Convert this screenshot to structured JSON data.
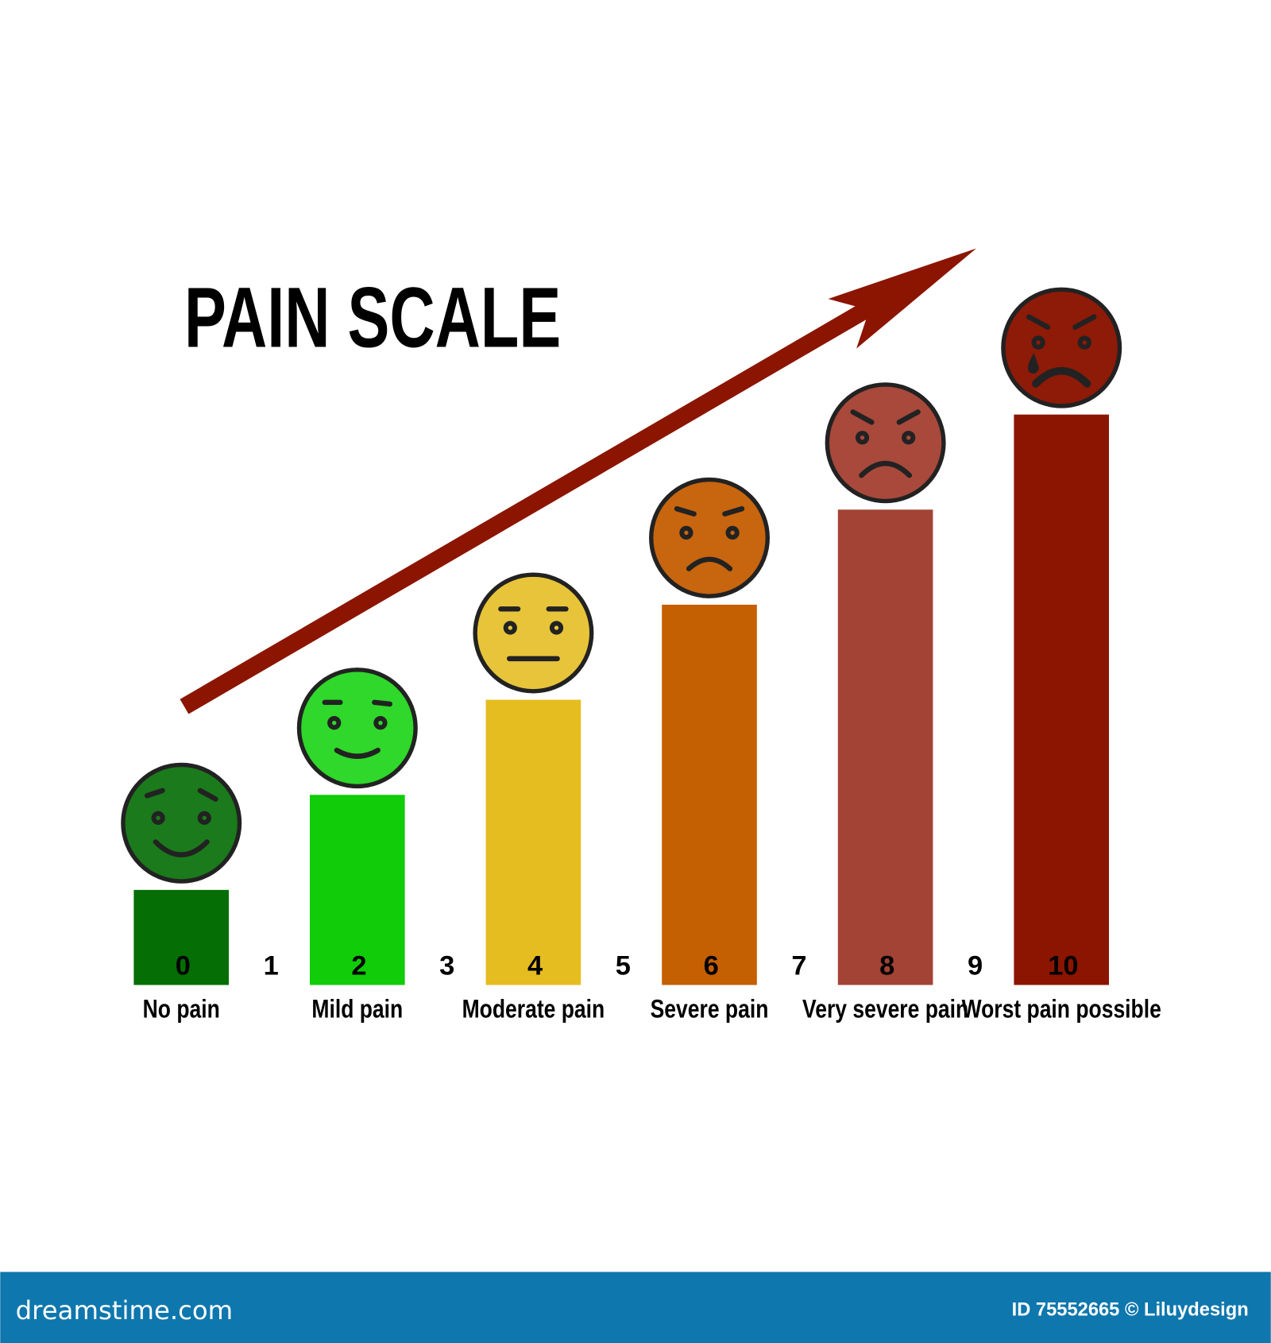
{
  "chart_data": {
    "type": "bar",
    "title": "PAIN SCALE",
    "categories": [
      "0",
      "1",
      "2",
      "3",
      "4",
      "5",
      "6",
      "7",
      "8",
      "9",
      "10"
    ],
    "bars": [
      {
        "score": "0",
        "label": "No pain",
        "level": 1,
        "bar_color": "#056e05",
        "face_color": "#1b7a1b",
        "mood": "happy"
      },
      {
        "score": "2",
        "label": "Mild pain",
        "level": 2,
        "bar_color": "#11cc08",
        "face_color": "#2fd82a",
        "mood": "smile"
      },
      {
        "score": "4",
        "label": "Moderate pain",
        "level": 3,
        "bar_color": "#e5bd20",
        "face_color": "#e8c43a",
        "mood": "neutral"
      },
      {
        "score": "6",
        "label": "Severe pain",
        "level": 4,
        "bar_color": "#c45f02",
        "face_color": "#c8650f",
        "mood": "sad"
      },
      {
        "score": "8",
        "label": "Very severe pain",
        "level": 5,
        "bar_color": "#a34335",
        "face_color": "#a8493b",
        "mood": "angry"
      },
      {
        "score": "10",
        "label": "Worst pain possible",
        "level": 6,
        "bar_color": "#8b1500",
        "face_color": "#8e1a08",
        "mood": "crying"
      }
    ],
    "intermediate_scores": [
      "1",
      "3",
      "5",
      "7",
      "9"
    ],
    "arrow_color": "#8b1500",
    "grid": false
  },
  "footer": {
    "brand": "dreamstime.com",
    "credit": "ID 75552665 © Liluydesign",
    "color": "#0e77ad"
  }
}
